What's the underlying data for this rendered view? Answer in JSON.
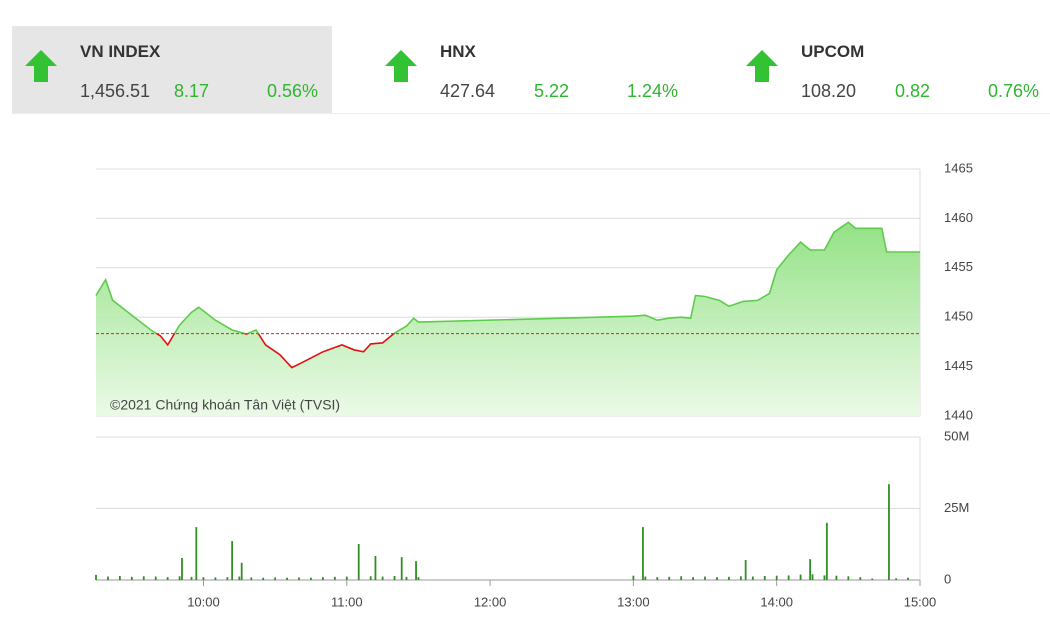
{
  "indices": [
    {
      "name": "VN INDEX",
      "value": "1,456.51",
      "change": "8.17",
      "percent": "0.56%"
    },
    {
      "name": "HNX",
      "value": "427.64",
      "change": "5.22",
      "percent": "1.24%"
    },
    {
      "name": "UPCOM",
      "value": "108.20",
      "change": "0.82",
      "percent": "0.76%"
    }
  ],
  "chart_data": [
    {
      "type": "area",
      "annotation": "©2021 Chứng khoán Tân Việt (TVSI)",
      "x": [
        555,
        559,
        562,
        570,
        578,
        582,
        585,
        590,
        595,
        598,
        605,
        612,
        618,
        622,
        626,
        632,
        637,
        642,
        650,
        658,
        663,
        667,
        670,
        675,
        680,
        685,
        688,
        690,
        780,
        785,
        790,
        795,
        800,
        804,
        806,
        810,
        816,
        820,
        826,
        832,
        837,
        840,
        845,
        850,
        854,
        860,
        864,
        870,
        873,
        884,
        886,
        900
      ],
      "values": [
        1452.2,
        1453.8,
        1451.7,
        1450.2,
        1448.7,
        1448.1,
        1447.2,
        1449.2,
        1450.5,
        1451.0,
        1449.7,
        1448.7,
        1448.3,
        1448.7,
        1447.2,
        1446.2,
        1444.9,
        1445.5,
        1446.5,
        1447.2,
        1446.7,
        1446.5,
        1447.3,
        1447.4,
        1448.4,
        1449.1,
        1449.9,
        1449.5,
        1450.1,
        1450.2,
        1449.7,
        1449.9,
        1450.0,
        1449.9,
        1452.2,
        1452.1,
        1451.7,
        1451.1,
        1451.6,
        1451.7,
        1452.4,
        1454.8,
        1456.3,
        1457.6,
        1456.8,
        1456.8,
        1458.6,
        1459.6,
        1459.0,
        1459.0,
        1456.6,
        1456.6
      ],
      "color": "#5ccc4a",
      "below_color": "#e01010",
      "reference_line": 1448.34,
      "reference_color": "#e02020",
      "xlim": [
        555,
        900
      ],
      "ylim": [
        1440,
        1465
      ],
      "yticks": [
        1440,
        1445,
        1450,
        1455,
        1460,
        1465
      ],
      "grid": true
    },
    {
      "type": "bar",
      "x": [
        555,
        560,
        565,
        570,
        575,
        580,
        585,
        590,
        591,
        595,
        597,
        600,
        605,
        610,
        612,
        615,
        616,
        620,
        625,
        630,
        635,
        640,
        645,
        650,
        655,
        660,
        665,
        670,
        672,
        675,
        680,
        683,
        685,
        689,
        690,
        780,
        784,
        785,
        790,
        795,
        800,
        805,
        810,
        815,
        820,
        825,
        827,
        830,
        835,
        840,
        845,
        850,
        854,
        855,
        860,
        861,
        865,
        870,
        875,
        880,
        887,
        890,
        895
      ],
      "values": [
        1.8,
        1.2,
        1.4,
        1.1,
        1.3,
        1.2,
        1.0,
        1.3,
        7.7,
        1.1,
        18.5,
        1.0,
        0.9,
        1.0,
        13.6,
        1.2,
        6.0,
        0.9,
        0.8,
        0.9,
        0.8,
        0.9,
        0.8,
        1.0,
        1.1,
        1.2,
        12.6,
        1.3,
        8.4,
        1.2,
        1.4,
        8.0,
        1.1,
        6.6,
        1.0,
        1.5,
        18.5,
        1.2,
        1.0,
        1.1,
        1.3,
        1.0,
        1.2,
        1.0,
        1.1,
        1.3,
        7.0,
        1.2,
        1.4,
        1.5,
        1.6,
        1.9,
        7.3,
        2.0,
        1.6,
        20.0,
        1.5,
        1.3,
        1.0,
        0.5,
        33.5,
        0.6,
        0.8
      ],
      "color": "#2f8f22",
      "xlim": [
        555,
        900
      ],
      "ylim": [
        0,
        50
      ],
      "yticks": [
        0,
        {
          "value": 25,
          "label": "25M"
        },
        {
          "value": 50,
          "label": "50M"
        }
      ],
      "xticks": [
        {
          "value": 600,
          "label": "10:00"
        },
        {
          "value": 660,
          "label": "11:00"
        },
        {
          "value": 720,
          "label": "12:00"
        },
        {
          "value": 780,
          "label": "13:00"
        },
        {
          "value": 840,
          "label": "14:00"
        },
        {
          "value": 900,
          "label": "15:00"
        }
      ],
      "grid": true
    }
  ]
}
